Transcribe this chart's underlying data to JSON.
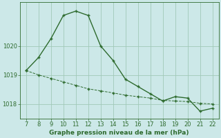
{
  "line_color": "#2d6a2d",
  "bg_color": "#cce8e8",
  "grid_color": "#a0c8b8",
  "xlabel": "Graphe pression niveau de la mer (hPa)",
  "yticks": [
    1018,
    1019,
    1020
  ],
  "xticks": [
    7,
    8,
    9,
    10,
    11,
    12,
    13,
    14,
    15,
    16,
    17,
    18,
    19,
    20,
    21,
    22
  ],
  "ylim": [
    1017.5,
    1021.5
  ],
  "xlim": [
    6.5,
    22.5
  ],
  "x_solid": [
    7,
    8,
    9,
    10,
    11,
    12,
    13,
    14,
    15,
    16,
    17,
    18,
    19,
    20,
    21,
    22
  ],
  "y_solid": [
    1019.15,
    1019.6,
    1020.25,
    1021.05,
    1021.2,
    1021.05,
    1020.0,
    1019.5,
    1018.85,
    1018.6,
    1018.35,
    1018.1,
    1018.25,
    1018.2,
    1017.75,
    1017.85
  ],
  "x_dashed": [
    7,
    8,
    9,
    10,
    11,
    12,
    13,
    14,
    15,
    16,
    17,
    18,
    19,
    20,
    21,
    22
  ],
  "y_dashed": [
    1019.15,
    1019.0,
    1018.88,
    1018.76,
    1018.64,
    1018.52,
    1018.45,
    1018.38,
    1018.3,
    1018.25,
    1018.2,
    1018.12,
    1018.1,
    1018.08,
    1018.02,
    1018.0
  ],
  "xlabel_fontsize": 6.5,
  "tick_fontsize": 6
}
